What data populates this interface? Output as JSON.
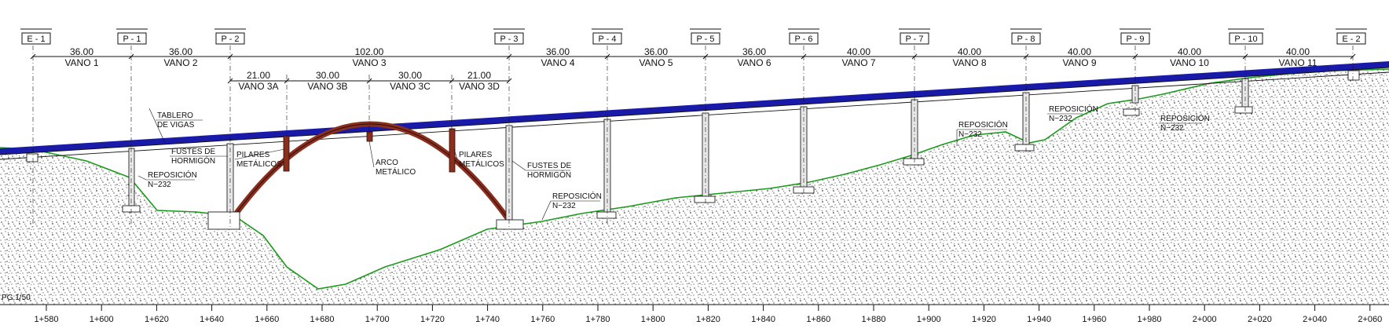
{
  "supports": [
    {
      "id": "E - 1"
    },
    {
      "id": "P - 1"
    },
    {
      "id": "P - 2"
    },
    {
      "id": "P - 3"
    },
    {
      "id": "P - 4"
    },
    {
      "id": "P - 5"
    },
    {
      "id": "P - 6"
    },
    {
      "id": "P - 7"
    },
    {
      "id": "P - 8"
    },
    {
      "id": "P - 9"
    },
    {
      "id": "P - 10"
    },
    {
      "id": "E - 2"
    }
  ],
  "spans": [
    {
      "length": "36.00",
      "name": "VANO 1"
    },
    {
      "length": "36.00",
      "name": "VANO 2"
    },
    {
      "length": "102.00",
      "name": "VANO 3"
    },
    {
      "length": "36.00",
      "name": "VANO 4"
    },
    {
      "length": "36.00",
      "name": "VANO 5"
    },
    {
      "length": "36.00",
      "name": "VANO 6"
    },
    {
      "length": "40.00",
      "name": "VANO 7"
    },
    {
      "length": "40.00",
      "name": "VANO 8"
    },
    {
      "length": "40.00",
      "name": "VANO 9"
    },
    {
      "length": "40.00",
      "name": "VANO 10"
    },
    {
      "length": "40.00",
      "name": "VANO 11"
    }
  ],
  "sub_spans": [
    {
      "length": "21.00",
      "name": "VANO 3A"
    },
    {
      "length": "30.00",
      "name": "VANO 3B"
    },
    {
      "length": "30.00",
      "name": "VANO 3C"
    },
    {
      "length": "21.00",
      "name": "VANO 3D"
    }
  ],
  "annotations": {
    "tablero_1": "TABLERO",
    "tablero_2": "DE VIGAS",
    "fustes_left_1": "FUSTES DE",
    "fustes_left_2": "HORMIGÓN",
    "pilares_left_1": "PILARES",
    "pilares_left_2": "METÁLICOS",
    "arco_1": "ARCO",
    "arco_2": "METÁLICO",
    "pilares_right_1": "PILARES",
    "pilares_right_2": "METÁLICOS",
    "fustes_right_1": "FUSTES DE",
    "fustes_right_2": "HORMIGÓN",
    "reposicion": "REPOSICIÓN",
    "road": "N−232",
    "scale": "PG:1/50"
  },
  "stations": [
    "1+580",
    "1+600",
    "1+620",
    "1+640",
    "1+660",
    "1+680",
    "1+700",
    "1+720",
    "1+740",
    "1+760",
    "1+780",
    "1+800",
    "1+820",
    "1+840",
    "1+860",
    "1+880",
    "1+900",
    "1+920",
    "1+940",
    "1+960",
    "1+980",
    "2+000",
    "2+020",
    "2+040",
    "2+060"
  ],
  "colors": {
    "deck": "#1a1aa8",
    "arch": "#8b2e1e",
    "ground": "#1a9a1a",
    "line": "#111111",
    "speckle": "#555555"
  }
}
